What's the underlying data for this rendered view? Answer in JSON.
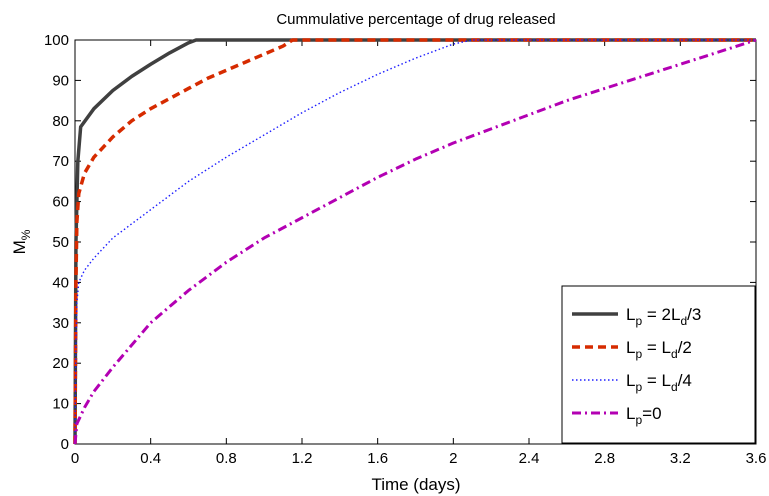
{
  "chart_data": {
    "type": "line",
    "title": "Cummulative percentage of drug released",
    "xlabel": "Time (days)",
    "ylabel": {
      "main": "M",
      "sub": "%"
    },
    "xlim": [
      0,
      3.6
    ],
    "ylim": [
      0,
      100
    ],
    "xticks": [
      0,
      0.4,
      0.8,
      1.2,
      1.6,
      2,
      2.4,
      2.8,
      3.2,
      3.6
    ],
    "yticks": [
      0,
      10,
      20,
      30,
      40,
      50,
      60,
      70,
      80,
      90,
      100
    ],
    "grid": false,
    "legend_position": "bottom-right",
    "series": [
      {
        "legend_parts": [
          {
            "t": "L",
            "s": "n"
          },
          {
            "t": "p",
            "s": "sub"
          },
          {
            "t": " = 2L",
            "s": "n"
          },
          {
            "t": "d",
            "s": "sub"
          },
          {
            "t": "/3",
            "s": "n"
          }
        ],
        "color": "#404040",
        "dash": "solid",
        "x": [
          0,
          0.005,
          0.015,
          0.03,
          0.1,
          0.2,
          0.3,
          0.4,
          0.5,
          0.6,
          0.64,
          0.8,
          1.2,
          1.6,
          2.0,
          2.4,
          2.8,
          3.2,
          3.6
        ],
        "y": [
          0,
          50,
          70,
          78.5,
          83,
          87.5,
          91,
          94,
          96.8,
          99.3,
          100,
          100,
          100,
          100,
          100,
          100,
          100,
          100,
          100
        ]
      },
      {
        "legend_parts": [
          {
            "t": "L",
            "s": "n"
          },
          {
            "t": "p",
            "s": "sub"
          },
          {
            "t": " = L",
            "s": "n"
          },
          {
            "t": "d",
            "s": "sub"
          },
          {
            "t": "/2",
            "s": "n"
          }
        ],
        "color": "#d62b00",
        "dash": "dashed",
        "x": [
          0,
          0.005,
          0.01,
          0.02,
          0.05,
          0.1,
          0.2,
          0.3,
          0.4,
          0.5,
          0.6,
          0.7,
          0.8,
          0.9,
          1.0,
          1.1,
          1.15,
          1.2,
          1.6,
          2.0,
          2.4,
          2.8,
          3.2,
          3.6
        ],
        "y": [
          0,
          40,
          55,
          62,
          67,
          71,
          76,
          80,
          83,
          85.5,
          88,
          90.5,
          92.5,
          94.5,
          96.5,
          98.5,
          100,
          100,
          100,
          100,
          100,
          100,
          100,
          100
        ]
      },
      {
        "legend_parts": [
          {
            "t": "L",
            "s": "n"
          },
          {
            "t": "p",
            "s": "sub"
          },
          {
            "t": " = L",
            "s": "n"
          },
          {
            "t": "d",
            "s": "sub"
          },
          {
            "t": "/4",
            "s": "n"
          }
        ],
        "color": "#1e1eff",
        "dash": "dotted",
        "x": [
          0,
          0.005,
          0.01,
          0.02,
          0.05,
          0.1,
          0.2,
          0.4,
          0.6,
          0.8,
          1.0,
          1.2,
          1.4,
          1.6,
          1.8,
          2.0,
          2.1,
          2.4,
          2.8,
          3.2,
          3.6
        ],
        "y": [
          0,
          25,
          35,
          40,
          43,
          46,
          51,
          58,
          65,
          71,
          76.5,
          82,
          87,
          91.5,
          95.5,
          99,
          100,
          100,
          100,
          100,
          100
        ]
      },
      {
        "legend_parts": [
          {
            "t": "L",
            "s": "n"
          },
          {
            "t": "p",
            "s": "sub"
          },
          {
            "t": "=0",
            "s": "n"
          }
        ],
        "color": "#b300b3",
        "dash": "dashdot",
        "x": [
          0,
          0.01,
          0.05,
          0.1,
          0.2,
          0.4,
          0.6,
          0.8,
          1.0,
          1.2,
          1.4,
          1.6,
          1.8,
          2.0,
          2.2,
          2.4,
          2.6,
          2.8,
          3.0,
          3.2,
          3.4,
          3.6
        ],
        "y": [
          0,
          5,
          9,
          13,
          19,
          30,
          38,
          45,
          51,
          56,
          61,
          66,
          70.5,
          74.5,
          78,
          81.5,
          85,
          88,
          91,
          94,
          97,
          100
        ]
      }
    ]
  }
}
